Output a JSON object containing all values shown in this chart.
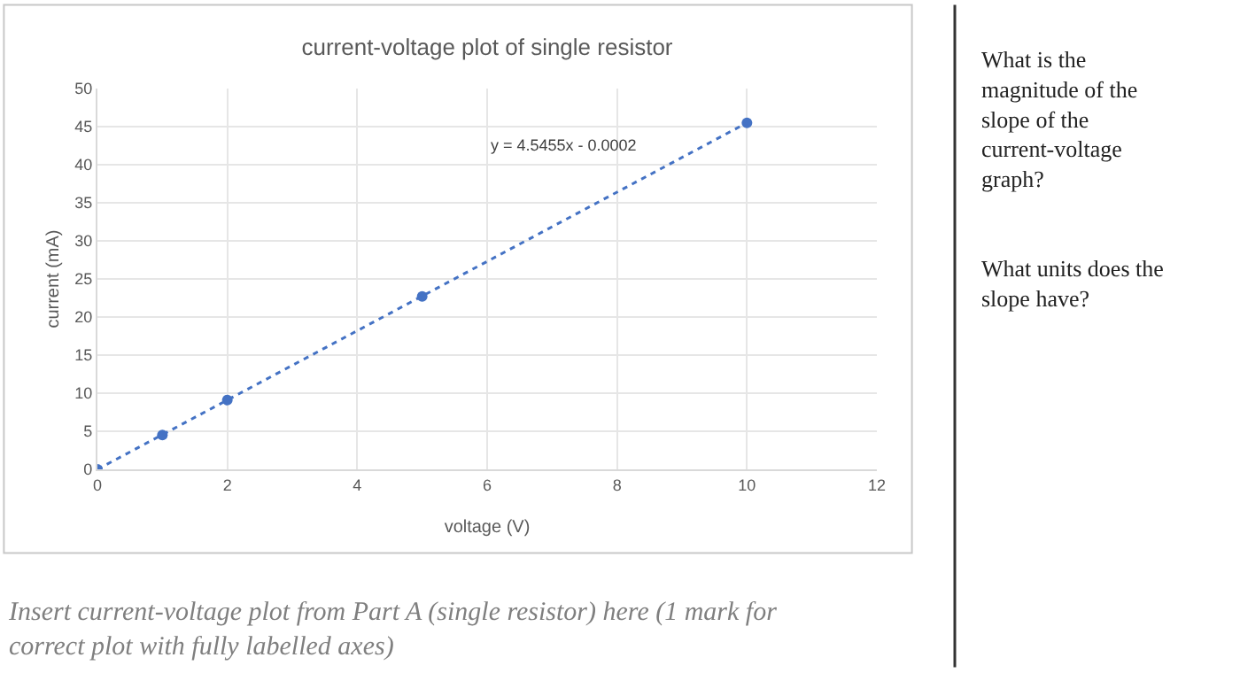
{
  "chart_data": {
    "type": "scatter",
    "title": "current-voltage plot of single resistor",
    "xlabel": "voltage (V)",
    "ylabel": "current (mA)",
    "series": [
      {
        "color": "#4472c4",
        "x": [
          0,
          1,
          2,
          5,
          10
        ],
        "values": [
          0,
          4.5,
          9.1,
          22.7,
          45.5
        ],
        "marker": "circle"
      },
      {
        "type": "line",
        "color": "#4472c4",
        "x": [
          0,
          10
        ],
        "values": [
          0,
          45.5
        ],
        "line_style": "dotted",
        "marker": "none"
      }
    ],
    "xlim": [
      0,
      12
    ],
    "xticks": [
      0,
      2,
      4,
      6,
      8,
      10,
      12
    ],
    "ylim": [
      0,
      50
    ],
    "yticks": [
      0,
      5,
      10,
      15,
      20,
      25,
      30,
      35,
      40,
      45,
      50
    ],
    "grid": true,
    "annotations": [
      "y = 4.5455x - 0.0002",
      "Insert current-voltage plot from Part A (single resistor) here (1 mark for correct plot with fully labelled axes)",
      "What is the magnitude of the slope of the current-voltage graph?",
      "What units does the slope have?"
    ]
  }
}
